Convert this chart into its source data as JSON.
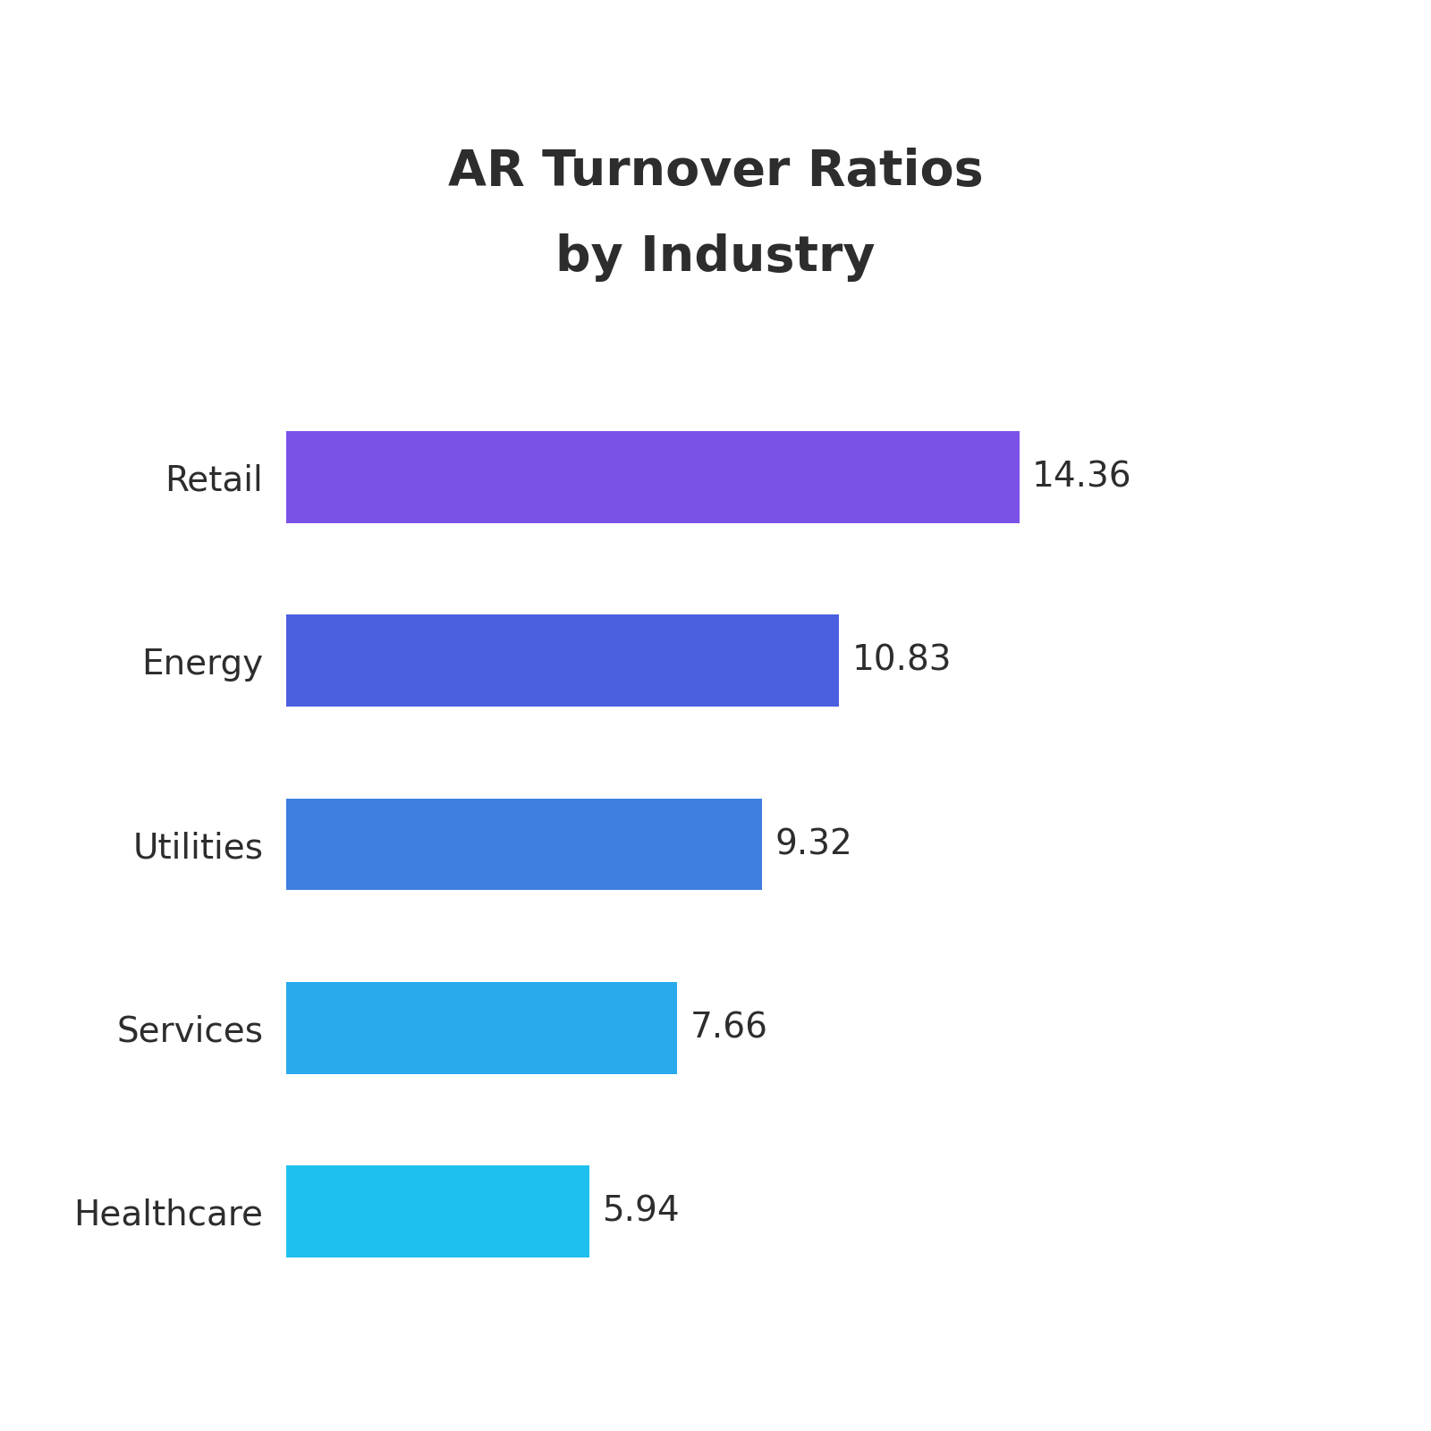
{
  "title_line1": "AR Turnover Ratios",
  "title_line2": "by Industry",
  "title_fontsize": 40,
  "title_color": "#2d2d2d",
  "categories": [
    "Retail",
    "Energy",
    "Utilities",
    "Services",
    "Healthcare"
  ],
  "values": [
    14.36,
    10.83,
    9.32,
    7.66,
    5.94
  ],
  "bar_colors": [
    "#7B52E8",
    "#4B5FE0",
    "#3E7FDF",
    "#29AAED",
    "#1DC0EF"
  ],
  "label_fontsize": 28,
  "value_fontsize": 28,
  "label_color": "#2d2d2d",
  "value_color": "#2d2d2d",
  "background_color": "#ffffff",
  "bar_height": 0.5,
  "xlim": [
    0,
    18.5
  ],
  "figsize": [
    16,
    16
  ]
}
